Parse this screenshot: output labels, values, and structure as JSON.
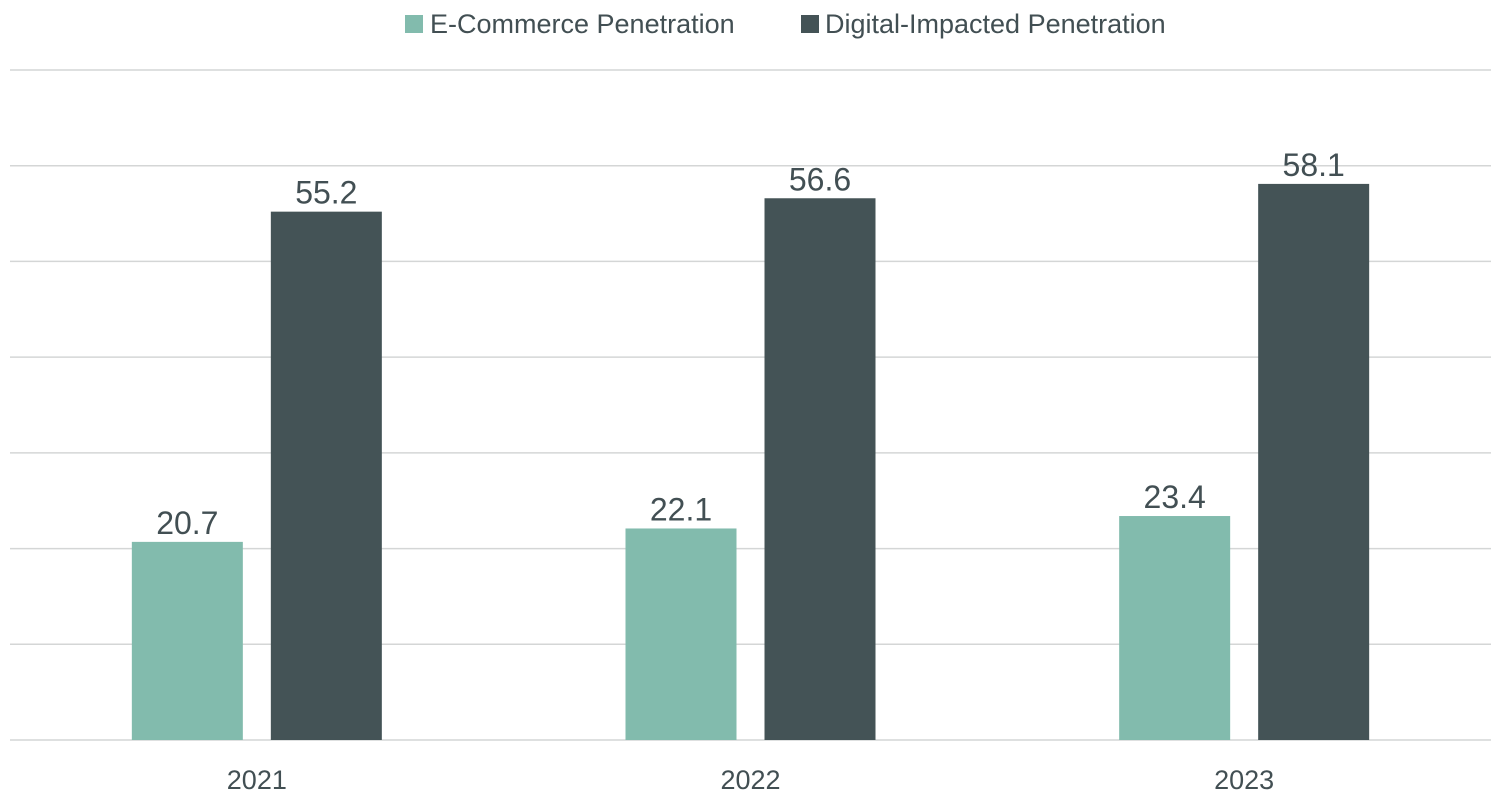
{
  "chart_data": {
    "type": "bar",
    "categories": [
      "2021",
      "2022",
      "2023"
    ],
    "series": [
      {
        "name": "E-Commerce Penetration",
        "values": [
          20.7,
          22.1,
          23.4
        ],
        "color": "#82bbad"
      },
      {
        "name": "Digital-Impacted Penetration",
        "values": [
          55.2,
          56.6,
          58.1
        ],
        "color": "#445356"
      }
    ],
    "ylim": [
      0,
      70
    ],
    "grid": true,
    "legend_position": "top-center",
    "data_labels": true
  }
}
